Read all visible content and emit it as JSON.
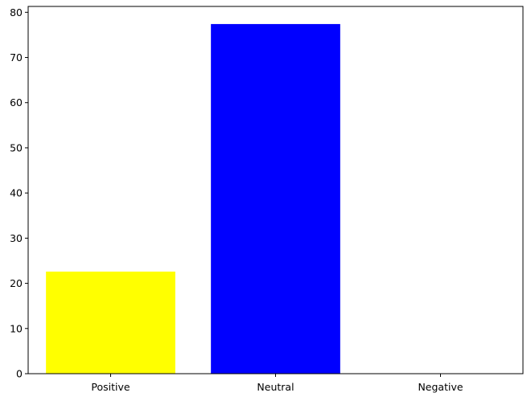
{
  "chart_data": {
    "type": "bar",
    "categories": [
      "Positive",
      "Neutral",
      "Negative"
    ],
    "values": [
      22.6,
      77.4,
      0
    ],
    "colors": [
      "#ffff00",
      "#0000ff",
      "#008000"
    ],
    "ylim": [
      0,
      81.3
    ],
    "yticks": [
      0,
      10,
      20,
      30,
      40,
      50,
      60,
      70,
      80
    ],
    "grid": false,
    "title": "",
    "xlabel": "",
    "ylabel": ""
  }
}
